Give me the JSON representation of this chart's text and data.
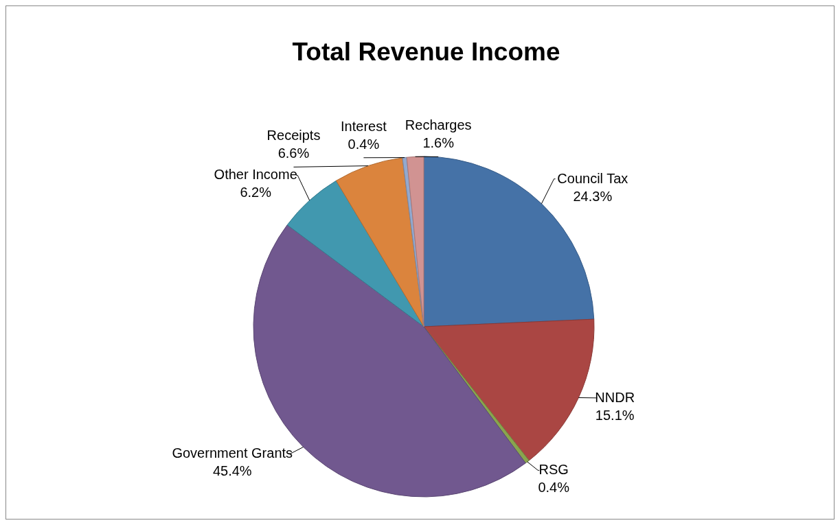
{
  "chart_data": {
    "type": "pie",
    "title": "Total Revenue Income",
    "categories": [
      "Council Tax",
      "NNDR",
      "RSG",
      "Government Grants",
      "Other Income",
      "Receipts",
      "Interest",
      "Recharges"
    ],
    "values": [
      24.3,
      15.1,
      0.4,
      45.4,
      6.2,
      6.6,
      0.4,
      1.6
    ],
    "value_labels": [
      "24.3%",
      "15.1%",
      "0.4%",
      "45.4%",
      "6.2%",
      "6.6%",
      "0.4%",
      "1.6%"
    ],
    "colors": [
      "#4572a7",
      "#aa4643",
      "#89a54e",
      "#71588f",
      "#4198af",
      "#db843d",
      "#93a9cf",
      "#d19392"
    ]
  }
}
